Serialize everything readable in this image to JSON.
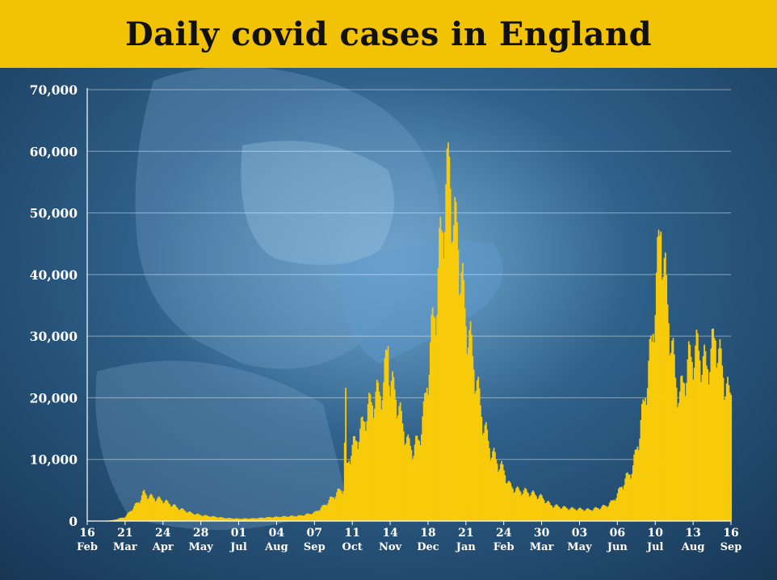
{
  "header": {
    "title": "Daily covid cases in England"
  },
  "colors": {
    "bar": "#f7cb0a",
    "title_bg": "#f2c205",
    "background": "#1d3f60",
    "grid": "#ffffff"
  },
  "background_image": "healthcare-worker-mask-swab-photo",
  "chart_data": {
    "type": "bar",
    "title": "Daily covid cases in England",
    "xlabel": "",
    "ylabel": "",
    "ylim": [
      0,
      70000
    ],
    "yticks": [
      {
        "value": 0,
        "label": "0"
      },
      {
        "value": 10000,
        "label": "10,000"
      },
      {
        "value": 20000,
        "label": "20,000"
      },
      {
        "value": 30000,
        "label": "30,000"
      },
      {
        "value": 40000,
        "label": "40,000"
      },
      {
        "value": 50000,
        "label": "50,000"
      },
      {
        "value": 60000,
        "label": "60,000"
      },
      {
        "value": 70000,
        "label": "70,000"
      }
    ],
    "grid": true,
    "legend": "none",
    "xrange": [
      "2020-02-16",
      "2021-09-16"
    ],
    "xticks": [
      {
        "date": "2020-02-16",
        "day": "16",
        "month": "Feb"
      },
      {
        "date": "2020-03-21",
        "day": "21",
        "month": "Mar"
      },
      {
        "date": "2020-04-24",
        "day": "24",
        "month": "Apr"
      },
      {
        "date": "2020-05-28",
        "day": "28",
        "month": "May"
      },
      {
        "date": "2020-07-01",
        "day": "01",
        "month": "Jul"
      },
      {
        "date": "2020-08-04",
        "day": "04",
        "month": "Aug"
      },
      {
        "date": "2020-09-07",
        "day": "07",
        "month": "Sep"
      },
      {
        "date": "2020-10-11",
        "day": "11",
        "month": "Oct"
      },
      {
        "date": "2020-11-14",
        "day": "14",
        "month": "Nov"
      },
      {
        "date": "2020-12-18",
        "day": "18",
        "month": "Dec"
      },
      {
        "date": "2021-01-21",
        "day": "21",
        "month": "Jan"
      },
      {
        "date": "2021-02-24",
        "day": "24",
        "month": "Feb"
      },
      {
        "date": "2021-03-30",
        "day": "30",
        "month": "Mar"
      },
      {
        "date": "2021-05-03",
        "day": "03",
        "month": "May"
      },
      {
        "date": "2021-06-06",
        "day": "06",
        "month": "Jun"
      },
      {
        "date": "2021-07-10",
        "day": "10",
        "month": "Jul"
      },
      {
        "date": "2021-08-13",
        "day": "13",
        "month": "Aug"
      },
      {
        "date": "2021-09-16",
        "day": "16",
        "month": "Sep"
      }
    ],
    "series_approx": [
      [
        "2020-02-16",
        0
      ],
      [
        "2020-03-01",
        30
      ],
      [
        "2020-03-10",
        150
      ],
      [
        "2020-03-21",
        700
      ],
      [
        "2020-03-28",
        2200
      ],
      [
        "2020-04-03",
        3500
      ],
      [
        "2020-04-07",
        4800
      ],
      [
        "2020-04-11",
        4200
      ],
      [
        "2020-04-18",
        3800
      ],
      [
        "2020-04-24",
        3500
      ],
      [
        "2020-05-01",
        2800
      ],
      [
        "2020-05-10",
        2000
      ],
      [
        "2020-05-20",
        1300
      ],
      [
        "2020-05-28",
        1000
      ],
      [
        "2020-06-10",
        700
      ],
      [
        "2020-06-20",
        500
      ],
      [
        "2020-07-01",
        400
      ],
      [
        "2020-07-15",
        450
      ],
      [
        "2020-07-25",
        600
      ],
      [
        "2020-08-04",
        700
      ],
      [
        "2020-08-15",
        800
      ],
      [
        "2020-08-25",
        900
      ],
      [
        "2020-09-07",
        1400
      ],
      [
        "2020-09-15",
        2500
      ],
      [
        "2020-09-22",
        3800
      ],
      [
        "2020-09-30",
        5200
      ],
      [
        "2020-10-03",
        5500
      ],
      [
        "2020-10-05",
        20000
      ],
      [
        "2020-10-06",
        9000
      ],
      [
        "2020-10-10",
        12000
      ],
      [
        "2020-10-18",
        15000
      ],
      [
        "2020-10-25",
        19000
      ],
      [
        "2020-11-01",
        21000
      ],
      [
        "2020-11-08",
        22500
      ],
      [
        "2020-11-12",
        30500
      ],
      [
        "2020-11-14",
        23000
      ],
      [
        "2020-11-18",
        22000
      ],
      [
        "2020-11-24",
        17000
      ],
      [
        "2020-11-30",
        13000
      ],
      [
        "2020-12-05",
        12000
      ],
      [
        "2020-12-10",
        14000
      ],
      [
        "2020-12-14",
        18000
      ],
      [
        "2020-12-18",
        25000
      ],
      [
        "2020-12-22",
        33000
      ],
      [
        "2020-12-26",
        38000
      ],
      [
        "2020-12-29",
        47000
      ],
      [
        "2021-01-01",
        52000
      ],
      [
        "2021-01-04",
        56000
      ],
      [
        "2021-01-06",
        61000
      ],
      [
        "2021-01-08",
        55000
      ],
      [
        "2021-01-10",
        48000
      ],
      [
        "2021-01-13",
        50000
      ],
      [
        "2021-01-16",
        42000
      ],
      [
        "2021-01-21",
        34000
      ],
      [
        "2021-01-25",
        30000
      ],
      [
        "2021-01-30",
        24000
      ],
      [
        "2021-02-05",
        17000
      ],
      [
        "2021-02-12",
        12000
      ],
      [
        "2021-02-18",
        10000
      ],
      [
        "2021-02-24",
        8500
      ],
      [
        "2021-03-01",
        6000
      ],
      [
        "2021-03-08",
        5200
      ],
      [
        "2021-03-15",
        5000
      ],
      [
        "2021-03-22",
        4600
      ],
      [
        "2021-03-30",
        4000
      ],
      [
        "2021-04-07",
        2700
      ],
      [
        "2021-04-15",
        2400
      ],
      [
        "2021-04-25",
        2100
      ],
      [
        "2021-05-03",
        2000
      ],
      [
        "2021-05-12",
        1900
      ],
      [
        "2021-05-20",
        2200
      ],
      [
        "2021-05-27",
        2600
      ],
      [
        "2021-06-01",
        3200
      ],
      [
        "2021-06-06",
        4500
      ],
      [
        "2021-06-10",
        6000
      ],
      [
        "2021-06-15",
        7500
      ],
      [
        "2021-06-20",
        9000
      ],
      [
        "2021-06-25",
        14000
      ],
      [
        "2021-06-30",
        20000
      ],
      [
        "2021-07-04",
        26000
      ],
      [
        "2021-07-07",
        30000
      ],
      [
        "2021-07-10",
        38000
      ],
      [
        "2021-07-13",
        45000
      ],
      [
        "2021-07-15",
        50500
      ],
      [
        "2021-07-17",
        45000
      ],
      [
        "2021-07-20",
        38000
      ],
      [
        "2021-07-24",
        31000
      ],
      [
        "2021-07-28",
        24000
      ],
      [
        "2021-08-01",
        21000
      ],
      [
        "2021-08-05",
        24000
      ],
      [
        "2021-08-09",
        27000
      ],
      [
        "2021-08-13",
        28000
      ],
      [
        "2021-08-17",
        29000
      ],
      [
        "2021-08-21",
        27000
      ],
      [
        "2021-08-25",
        26000
      ],
      [
        "2021-08-29",
        28000
      ],
      [
        "2021-09-02",
        31500
      ],
      [
        "2021-09-05",
        28000
      ],
      [
        "2021-09-08",
        26000
      ],
      [
        "2021-09-11",
        23000
      ],
      [
        "2021-09-14",
        21000
      ],
      [
        "2021-09-16",
        22000
      ]
    ]
  }
}
